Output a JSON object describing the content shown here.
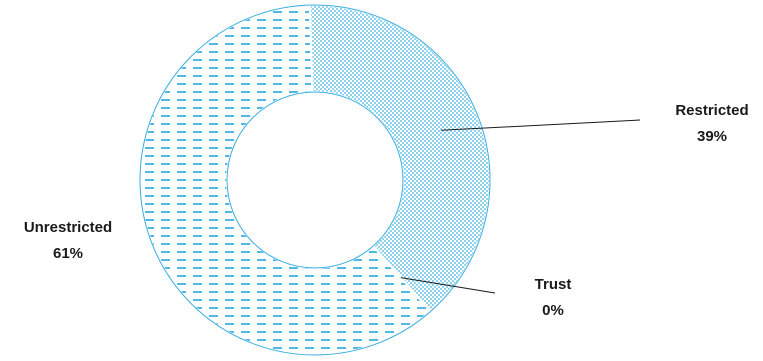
{
  "chart_data": {
    "type": "pie",
    "variant": "donut",
    "title": "",
    "legend": "none",
    "slices": [
      {
        "name": "Restricted",
        "label": "39%",
        "value": 39,
        "color": "#8fd3ef",
        "pattern": "dots"
      },
      {
        "name": "Trust",
        "label": "0%",
        "value": 0,
        "color": "#4fb8e4",
        "pattern": "dashes"
      },
      {
        "name": "Unrestricted",
        "label": "61%",
        "value": 61,
        "color": "#4fb8e4",
        "pattern": "dashes"
      }
    ],
    "edge_color": "#3aaee0"
  }
}
